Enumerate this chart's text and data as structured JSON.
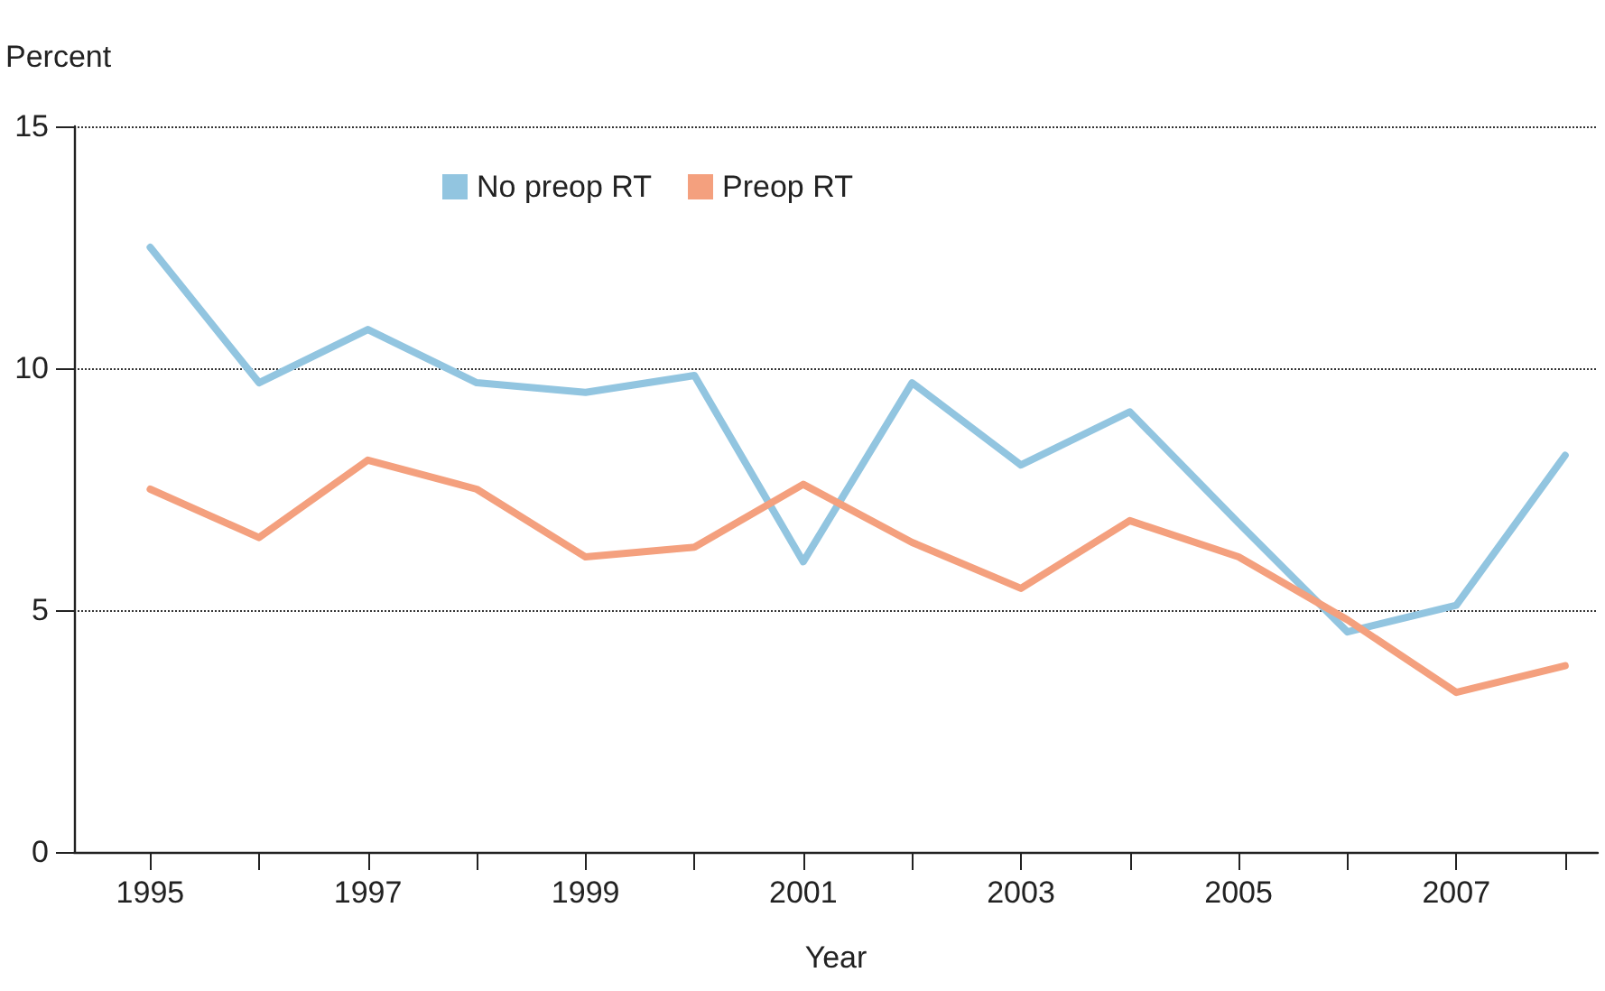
{
  "chart_data": {
    "type": "line",
    "xlabel": "Year",
    "ylabel": "Percent",
    "x": [
      1995,
      1996,
      1997,
      1998,
      1999,
      2000,
      2001,
      2002,
      2003,
      2004,
      2005,
      2006,
      2007,
      2008
    ],
    "series": [
      {
        "name": "No preop RT",
        "color": "#92c5e0",
        "values": [
          12.5,
          9.7,
          10.8,
          9.7,
          9.5,
          9.85,
          6.0,
          9.7,
          8.0,
          9.1,
          6.8,
          4.55,
          5.1,
          8.2
        ]
      },
      {
        "name": "Preop RT",
        "color": "#f4a07e",
        "values": [
          7.5,
          6.5,
          8.1,
          7.5,
          6.1,
          6.3,
          7.6,
          6.4,
          5.45,
          6.85,
          6.1,
          4.8,
          3.3,
          3.85
        ]
      }
    ],
    "xlim": [
      1994.3,
      2008.3
    ],
    "xticks": [
      1995,
      {
        "value": 1996,
        "label": null
      },
      1997,
      {
        "value": 1998,
        "label": null
      },
      1999,
      {
        "value": 2000,
        "label": null
      },
      2001,
      {
        "value": 2002,
        "label": null
      },
      2003,
      {
        "value": 2004,
        "label": null
      },
      2005,
      {
        "value": 2006,
        "label": null
      },
      2007,
      {
        "value": 2008,
        "label": null
      }
    ],
    "ylim": [
      0,
      15
    ],
    "yticks": [
      0,
      5,
      10,
      15
    ],
    "grid": "y",
    "legend": "top",
    "marker": "none",
    "line_style": "solid"
  }
}
